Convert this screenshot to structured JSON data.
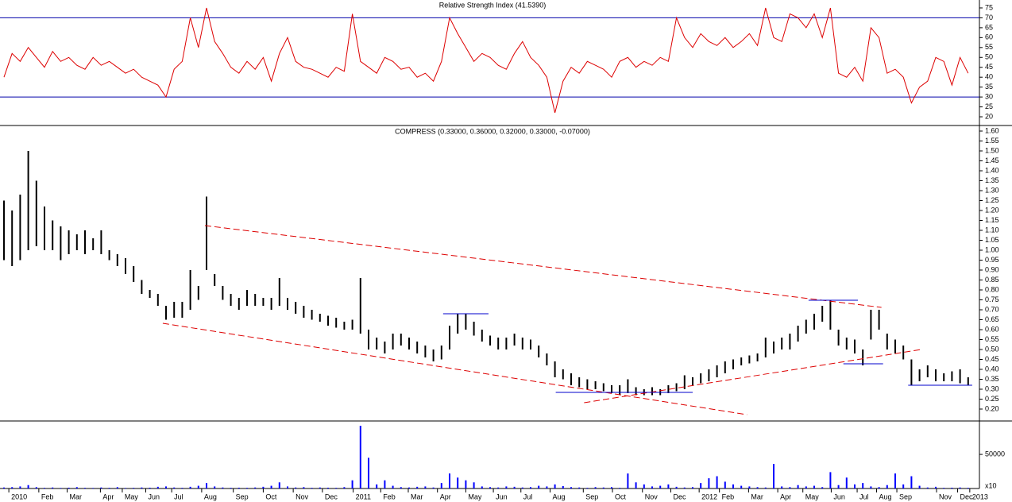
{
  "chart_data": [
    {
      "type": "line",
      "title": "Relative Strength Index (41.5390)",
      "color": "#dd0000",
      "level_color": "#0000aa",
      "levels": [
        30,
        70
      ],
      "ylim": [
        16,
        79
      ],
      "yticks": [
        20,
        25,
        30,
        35,
        40,
        45,
        50,
        55,
        60,
        65,
        70,
        75
      ],
      "values": [
        40,
        52,
        48,
        55,
        50,
        45,
        53,
        48,
        50,
        46,
        44,
        50,
        46,
        48,
        45,
        42,
        44,
        40,
        38,
        36,
        30,
        44,
        48,
        70,
        55,
        75,
        58,
        52,
        45,
        42,
        48,
        44,
        50,
        38,
        52,
        60,
        48,
        45,
        44,
        42,
        40,
        45,
        43,
        72,
        48,
        45,
        42,
        50,
        48,
        44,
        45,
        40,
        42,
        38,
        48,
        70,
        62,
        55,
        48,
        52,
        50,
        46,
        44,
        52,
        58,
        50,
        46,
        40,
        22,
        38,
        45,
        42,
        48,
        46,
        44,
        40,
        48,
        50,
        45,
        48,
        46,
        50,
        48,
        70,
        60,
        55,
        62,
        58,
        56,
        60,
        55,
        58,
        62,
        56,
        75,
        60,
        58,
        72,
        70,
        65,
        72,
        60,
        75,
        42,
        40,
        45,
        38,
        65,
        60,
        42,
        44,
        40,
        27,
        35,
        38,
        50,
        48,
        36,
        50,
        42
      ]
    },
    {
      "type": "range_bar",
      "title": "COMPRESS (0.33000, 0.36000, 0.32000, 0.33000, -0.07000)",
      "color": "#000000",
      "ylim": [
        0.14,
        1.628
      ],
      "yticks": [
        {
          "value": 0.2,
          "label": "0.20"
        },
        0.25,
        {
          "value": 0.3,
          "label": "0.30"
        },
        0.35,
        {
          "value": 0.4,
          "label": "0.40"
        },
        0.45,
        {
          "value": 0.5,
          "label": "0.50"
        },
        0.55,
        {
          "value": 0.6,
          "label": "0.60"
        },
        0.65,
        {
          "value": 0.7,
          "label": "0.70"
        },
        0.75,
        {
          "value": 0.8,
          "label": "0.80"
        },
        0.85,
        {
          "value": 0.9,
          "label": "0.90"
        },
        0.95,
        {
          "value": 1,
          "label": "1.00"
        },
        1.05,
        {
          "value": 1.1,
          "label": "1.10"
        },
        1.15,
        {
          "value": 1.2,
          "label": "1.20"
        },
        1.25,
        {
          "value": 1.3,
          "label": "1.30"
        },
        1.35,
        {
          "value": 1.4,
          "label": "1.40"
        },
        1.45,
        {
          "value": 1.5,
          "label": "1.50"
        },
        1.55,
        {
          "value": 1.6,
          "label": "1.60"
        }
      ],
      "low": [
        0.95,
        0.92,
        0.95,
        1.0,
        1.02,
        1.0,
        1.0,
        0.95,
        0.98,
        1.0,
        0.98,
        1.0,
        0.98,
        0.95,
        0.92,
        0.88,
        0.84,
        0.78,
        0.76,
        0.72,
        0.65,
        0.66,
        0.66,
        0.7,
        0.75,
        0.9,
        0.82,
        0.75,
        0.72,
        0.7,
        0.72,
        0.72,
        0.72,
        0.7,
        0.72,
        0.7,
        0.68,
        0.66,
        0.65,
        0.64,
        0.62,
        0.61,
        0.6,
        0.6,
        0.58,
        0.5,
        0.5,
        0.48,
        0.5,
        0.52,
        0.5,
        0.48,
        0.46,
        0.44,
        0.45,
        0.5,
        0.58,
        0.6,
        0.57,
        0.54,
        0.52,
        0.5,
        0.5,
        0.52,
        0.5,
        0.5,
        0.46,
        0.42,
        0.36,
        0.35,
        0.32,
        0.31,
        0.3,
        0.3,
        0.29,
        0.28,
        0.27,
        0.28,
        0.27,
        0.27,
        0.27,
        0.27,
        0.28,
        0.29,
        0.3,
        0.32,
        0.33,
        0.34,
        0.36,
        0.38,
        0.4,
        0.42,
        0.43,
        0.44,
        0.46,
        0.48,
        0.5,
        0.5,
        0.54,
        0.58,
        0.6,
        0.64,
        0.6,
        0.52,
        0.5,
        0.48,
        0.42,
        0.55,
        0.6,
        0.5,
        0.48,
        0.45,
        0.32,
        0.34,
        0.36,
        0.34,
        0.34,
        0.34,
        0.33,
        0.32
      ],
      "high": [
        1.25,
        1.2,
        1.28,
        1.5,
        1.35,
        1.22,
        1.15,
        1.12,
        1.1,
        1.08,
        1.1,
        1.06,
        1.1,
        1.0,
        0.98,
        0.96,
        0.92,
        0.85,
        0.8,
        0.78,
        0.72,
        0.74,
        0.74,
        0.9,
        0.82,
        1.27,
        0.88,
        0.82,
        0.78,
        0.76,
        0.8,
        0.78,
        0.76,
        0.76,
        0.86,
        0.76,
        0.74,
        0.72,
        0.7,
        0.68,
        0.67,
        0.66,
        0.64,
        0.65,
        0.86,
        0.6,
        0.56,
        0.54,
        0.58,
        0.58,
        0.56,
        0.54,
        0.52,
        0.5,
        0.52,
        0.62,
        0.68,
        0.68,
        0.64,
        0.6,
        0.57,
        0.56,
        0.56,
        0.58,
        0.56,
        0.55,
        0.52,
        0.48,
        0.44,
        0.4,
        0.38,
        0.36,
        0.35,
        0.34,
        0.33,
        0.32,
        0.32,
        0.35,
        0.31,
        0.3,
        0.31,
        0.3,
        0.32,
        0.33,
        0.37,
        0.36,
        0.38,
        0.4,
        0.42,
        0.44,
        0.45,
        0.46,
        0.47,
        0.48,
        0.56,
        0.54,
        0.56,
        0.58,
        0.62,
        0.65,
        0.68,
        0.72,
        0.75,
        0.6,
        0.56,
        0.55,
        0.5,
        0.7,
        0.7,
        0.58,
        0.55,
        0.52,
        0.45,
        0.4,
        0.42,
        0.4,
        0.38,
        0.39,
        0.4,
        0.36
      ],
      "trendlines": [
        {
          "color": "#dd0000",
          "dashed": true,
          "points": [
            [
              24.8,
              1.124
            ],
            [
              108.3,
              0.712
            ]
          ]
        },
        {
          "color": "#dd0000",
          "dashed": true,
          "points": [
            [
              19.6,
              0.632
            ],
            [
              91.7,
              0.172
            ]
          ]
        },
        {
          "color": "#dd0000",
          "dashed": true,
          "points": [
            [
              71.6,
              0.232
            ],
            [
              113.2,
              0.5
            ]
          ]
        },
        {
          "color": "#0000cc",
          "dashed": false,
          "points": [
            [
              54.2,
              0.68
            ],
            [
              59.8,
              0.68
            ]
          ]
        },
        {
          "color": "#0000cc",
          "dashed": false,
          "points": [
            [
              68.1,
              0.284
            ],
            [
              85,
              0.284
            ]
          ]
        },
        {
          "color": "#0000cc",
          "dashed": false,
          "points": [
            [
              99.3,
              0.748
            ],
            [
              105.4,
              0.748
            ]
          ]
        },
        {
          "color": "#0000cc",
          "dashed": false,
          "points": [
            [
              103.6,
              0.428
            ],
            [
              108.5,
              0.428
            ]
          ]
        },
        {
          "color": "#0000cc",
          "dashed": false,
          "points": [
            [
              111.6,
              0.32
            ],
            [
              119.5,
              0.32
            ]
          ]
        }
      ]
    },
    {
      "type": "bar",
      "color": "#0000ff",
      "unit_label": "x10",
      "ylim": [
        0,
        99000
      ],
      "yticks": [
        50000
      ],
      "values": [
        1500,
        2000,
        3000,
        5000,
        2000,
        1000,
        1500,
        800,
        1200,
        2000,
        1000,
        800,
        1500,
        1000,
        2000,
        800,
        1000,
        1500,
        1200,
        2500,
        3000,
        1500,
        1000,
        2500,
        4000,
        8000,
        3000,
        1500,
        1000,
        1200,
        1000,
        1500,
        2500,
        4000,
        9000,
        3000,
        1500,
        2000,
        1000,
        1500,
        1200,
        1000,
        2000,
        12000,
        92000,
        45000,
        6000,
        12000,
        4000,
        2000,
        1500,
        2500,
        3000,
        1500,
        8000,
        22000,
        16000,
        12000,
        9000,
        3000,
        2000,
        1500,
        3000,
        2500,
        1500,
        2000,
        4000,
        3000,
        6000,
        3500,
        2000,
        1500,
        1000,
        2000,
        1500,
        2000,
        1000,
        22000,
        9000,
        6000,
        3000,
        4000,
        6000,
        2500,
        1500,
        2000,
        8000,
        15000,
        18000,
        10000,
        6000,
        4000,
        3000,
        2000,
        1500,
        36000,
        3000,
        2000,
        5000,
        3000,
        4000,
        2000,
        24000,
        5000,
        16000,
        6000,
        8000,
        3000,
        2000,
        5000,
        22000,
        6000,
        18000,
        4000,
        1500,
        2500,
        1000,
        1200,
        1500,
        1000
      ],
      "xticks": [
        {
          "value": 0.6,
          "label": "2010"
        },
        {
          "value": 4.3,
          "label": "Feb"
        },
        {
          "value": 7.8,
          "label": "Mar"
        },
        {
          "value": 11.9,
          "label": "Apr"
        },
        {
          "value": 14.6,
          "label": "May"
        },
        {
          "value": 17.5,
          "label": "Jun"
        },
        {
          "value": 20.7,
          "label": "Jul"
        },
        {
          "value": 24.4,
          "label": "Aug"
        },
        {
          "value": 28.3,
          "label": "Sep"
        },
        {
          "value": 32,
          "label": "Oct"
        },
        {
          "value": 35.7,
          "label": "Nov"
        },
        {
          "value": 39.3,
          "label": "Dec"
        },
        {
          "value": 43.1,
          "label": "2011"
        },
        {
          "value": 46.5,
          "label": "Feb"
        },
        {
          "value": 49.9,
          "label": "Mar"
        },
        {
          "value": 53.5,
          "label": "Apr"
        },
        {
          "value": 57,
          "label": "May"
        },
        {
          "value": 60.4,
          "label": "Jun"
        },
        {
          "value": 63.8,
          "label": "Jul"
        },
        {
          "value": 67.4,
          "label": "Aug"
        },
        {
          "value": 71.5,
          "label": "Sep"
        },
        {
          "value": 75.1,
          "label": "Oct"
        },
        {
          "value": 78.8,
          "label": "Nov"
        },
        {
          "value": 82.3,
          "label": "Dec"
        },
        {
          "value": 85.8,
          "label": "2012"
        },
        {
          "value": 88.3,
          "label": "Feb"
        },
        {
          "value": 91.9,
          "label": "Mar"
        },
        {
          "value": 95.5,
          "label": "Apr"
        },
        {
          "value": 98.6,
          "label": "May"
        },
        {
          "value": 102.1,
          "label": "Jun"
        },
        {
          "value": 105.3,
          "label": "Jul"
        },
        {
          "value": 107.7,
          "label": "Aug"
        },
        {
          "value": 110.2,
          "label": "Sep"
        },
        {
          "value": 115.1,
          "label": "Nov"
        },
        {
          "value": 117.7,
          "label": "Dec"
        },
        {
          "value": 119.2,
          "label": "2013"
        }
      ]
    }
  ]
}
